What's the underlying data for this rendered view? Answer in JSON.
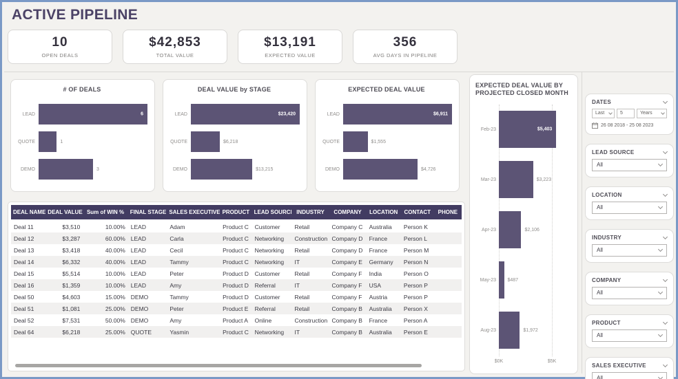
{
  "title": "ACTIVE PIPELINE",
  "kpis": [
    {
      "value": "10",
      "label": "OPEN DEALS"
    },
    {
      "value": "$42,853",
      "label": "TOTAL VALUE"
    },
    {
      "value": "$13,191",
      "label": "EXPECTED VALUE"
    },
    {
      "value": "356",
      "label": "AVG DAYS IN PIPELINE"
    }
  ],
  "chart_data": [
    {
      "type": "bar",
      "orientation": "horizontal",
      "title": "# OF DEALS",
      "categories": [
        "LEAD",
        "QUOTE",
        "DEMO"
      ],
      "values": [
        6,
        1,
        3
      ],
      "data_labels": [
        "6",
        "1",
        "3"
      ],
      "xlim": [
        0,
        6
      ],
      "grid": false,
      "legend": "none"
    },
    {
      "type": "bar",
      "orientation": "horizontal",
      "title": "DEAL VALUE by STAGE",
      "categories": [
        "LEAD",
        "QUOTE",
        "DEMO"
      ],
      "values": [
        23420,
        6218,
        13215
      ],
      "data_labels": [
        "$23,420",
        "$6,218",
        "$13,215"
      ],
      "xlim": [
        0,
        23420
      ],
      "grid": false,
      "legend": "none"
    },
    {
      "type": "bar",
      "orientation": "horizontal",
      "title": "EXPECTED DEAL VALUE",
      "categories": [
        "LEAD",
        "QUOTE",
        "DEMO"
      ],
      "values": [
        6911,
        1555,
        4726
      ],
      "data_labels": [
        "$6,911",
        "$1,555",
        "$4,726"
      ],
      "xlim": [
        0,
        6911
      ],
      "grid": false,
      "legend": "none"
    },
    {
      "type": "bar",
      "orientation": "horizontal",
      "title": "EXPECTED DEAL VALUE BY PROJECTED CLOSED MONTH",
      "categories": [
        "Feb-23",
        "Mar-23",
        "Apr-23",
        "May-23",
        "Aug-23"
      ],
      "values": [
        5403,
        3223,
        2106,
        487,
        1972
      ],
      "data_labels": [
        "$5,403",
        "$3,223",
        "$2,106",
        "$487",
        "$1,972"
      ],
      "xlim": [
        0,
        6875
      ],
      "x_ticks": [
        {
          "label": "$0K",
          "value": 0
        },
        {
          "label": "$5K",
          "value": 5000
        }
      ],
      "grid": true,
      "legend": "none"
    }
  ],
  "table": {
    "columns": [
      {
        "label": "DEAL NAME",
        "align": "left"
      },
      {
        "label": "DEAL VALUE",
        "align": "right"
      },
      {
        "label": "Sum of WIN %",
        "align": "right"
      },
      {
        "label": "FINAL STAGE",
        "align": "left"
      },
      {
        "label": "SALES EXECUTIVE",
        "align": "left"
      },
      {
        "label": "PRODUCT",
        "align": "left"
      },
      {
        "label": "LEAD SOURCE",
        "align": "left"
      },
      {
        "label": "INDUSTRY",
        "align": "left"
      },
      {
        "label": "COMPANY",
        "align": "left"
      },
      {
        "label": "LOCATION",
        "align": "left"
      },
      {
        "label": "CONTACT",
        "align": "left"
      },
      {
        "label": "PHONE",
        "align": "left"
      }
    ],
    "rows": [
      [
        "Deal 11",
        "$3,510",
        "10.00%",
        "LEAD",
        "Adam",
        "Product C",
        "Customer",
        "Retail",
        "Company C",
        "Australia",
        "Person K",
        ""
      ],
      [
        "Deal 12",
        "$3,287",
        "60.00%",
        "LEAD",
        "Carla",
        "Product C",
        "Networking",
        "Construction",
        "Company D",
        "France",
        "Person L",
        ""
      ],
      [
        "Deal 13",
        "$3,418",
        "40.00%",
        "LEAD",
        "Cecil",
        "Product C",
        "Networking",
        "Retail",
        "Company D",
        "France",
        "Person M",
        ""
      ],
      [
        "Deal 14",
        "$6,332",
        "40.00%",
        "LEAD",
        "Tammy",
        "Product C",
        "Networking",
        "IT",
        "Company E",
        "Germany",
        "Person N",
        ""
      ],
      [
        "Deal 15",
        "$5,514",
        "10.00%",
        "LEAD",
        "Peter",
        "Product D",
        "Customer",
        "Retail",
        "Company F",
        "India",
        "Person O",
        ""
      ],
      [
        "Deal 16",
        "$1,359",
        "10.00%",
        "LEAD",
        "Amy",
        "Product D",
        "Referral",
        "IT",
        "Company F",
        "USA",
        "Person P",
        ""
      ],
      [
        "Deal 50",
        "$4,603",
        "15.00%",
        "DEMO",
        "Tammy",
        "Product D",
        "Customer",
        "Retail",
        "Company F",
        "Austria",
        "Person P",
        ""
      ],
      [
        "Deal 51",
        "$1,081",
        "25.00%",
        "DEMO",
        "Peter",
        "Product E",
        "Referral",
        "Retail",
        "Company B",
        "Australia",
        "Person X",
        ""
      ],
      [
        "Deal 52",
        "$7,531",
        "50.00%",
        "DEMO",
        "Amy",
        "Product A",
        "Online",
        "Construction",
        "Company B",
        "France",
        "Person A",
        ""
      ],
      [
        "Deal 64",
        "$6,218",
        "25.00%",
        "QUOTE",
        "Yasmin",
        "Product C",
        "Networking",
        "IT",
        "Company B",
        "Australia",
        "Person E",
        ""
      ]
    ]
  },
  "filters": {
    "dates": {
      "label": "DATES",
      "mode": "Last",
      "amount": "5",
      "unit": "Years",
      "range": "26 08 2018 - 25 08 2023"
    },
    "dropdowns": [
      {
        "label": "LEAD SOURCE",
        "value": "All"
      },
      {
        "label": "LOCATION",
        "value": "All"
      },
      {
        "label": "INDUSTRY",
        "value": "All"
      },
      {
        "label": "COMPANY",
        "value": "All"
      },
      {
        "label": "PRODUCT",
        "value": "All"
      },
      {
        "label": "SALES EXECUTIVE",
        "value": "All"
      }
    ]
  },
  "colors": {
    "bar": "#5c5475",
    "table_header_bg": "#423c62",
    "title_text": "#4b4266",
    "frame_border": "#7a99c6",
    "alt_row_bg": "#f1f0ef"
  }
}
